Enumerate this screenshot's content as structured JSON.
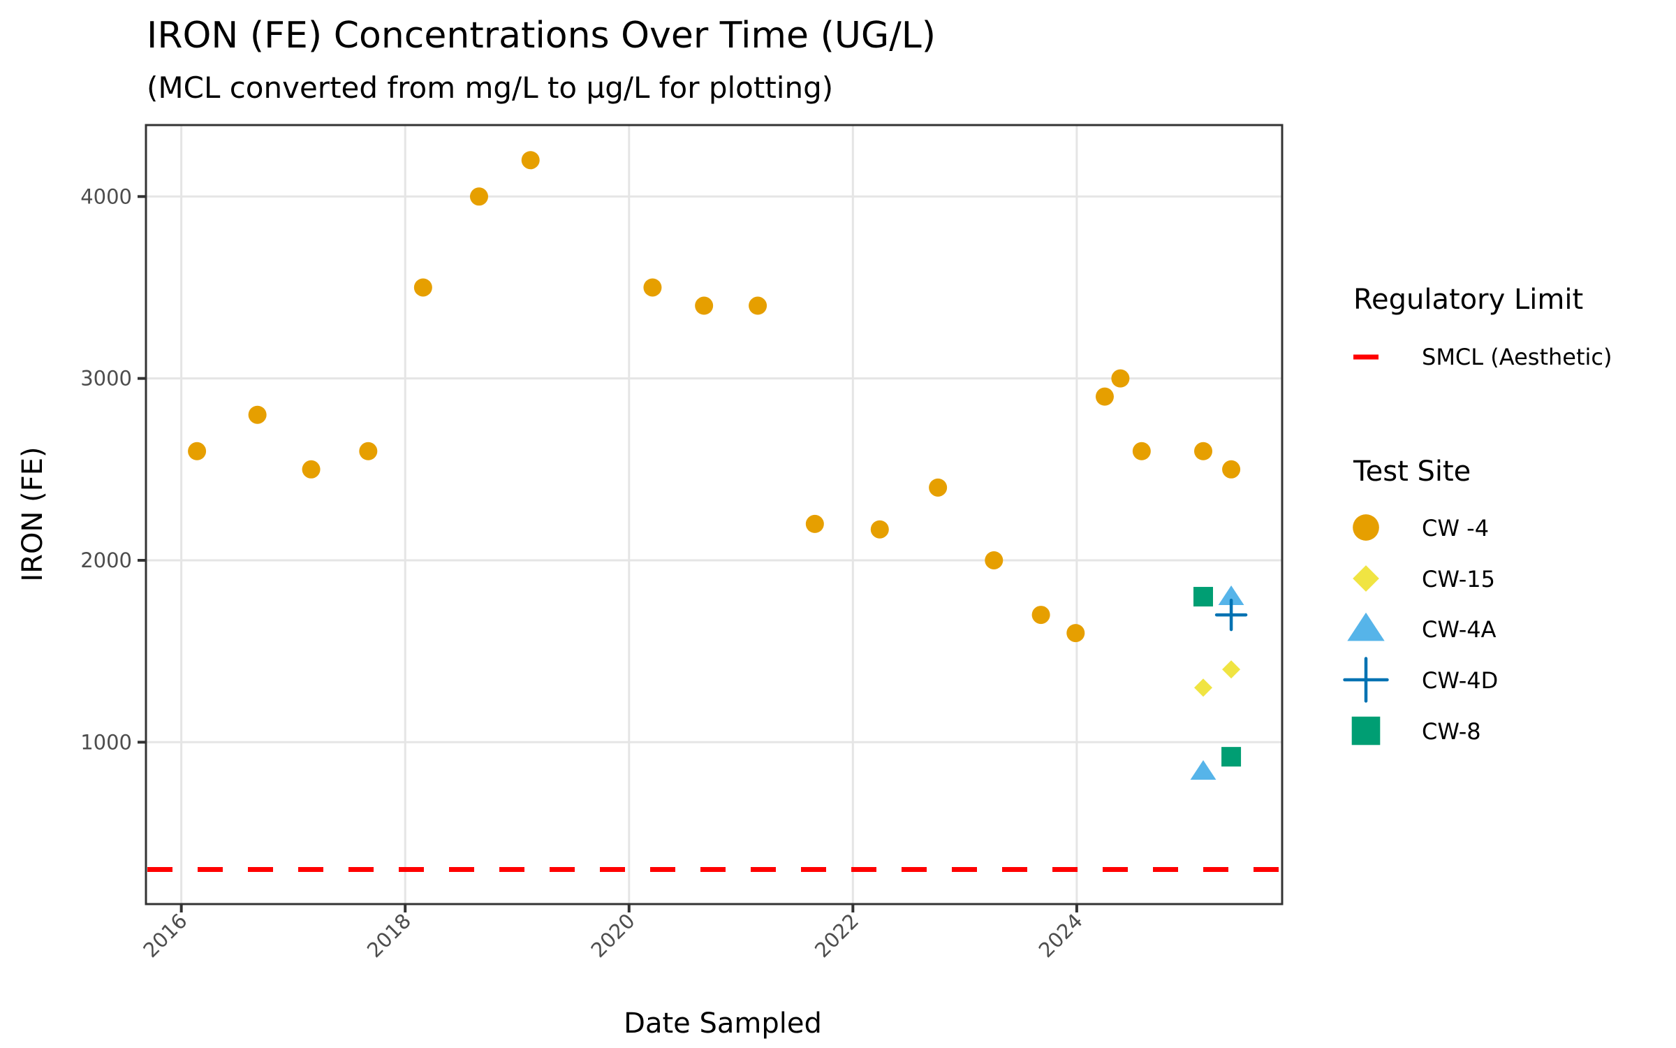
{
  "chart_data": {
    "type": "scatter",
    "title": "IRON (FE) Concentrations Over Time (UG/L)",
    "subtitle": "(MCL converted from mg/L to µg/L for plotting)",
    "xlabel": "Date Sampled",
    "ylabel": "IRON (FE)",
    "xlim": [
      2015.684,
      2025.835
    ],
    "ylim": [
      110,
      4393
    ],
    "x_ticks": [
      2016,
      2018,
      2020,
      2022,
      2024
    ],
    "x_tick_labels": [
      "2016",
      "2018",
      "2020",
      "2022",
      "2024"
    ],
    "y_ticks": [
      1000,
      2000,
      3000,
      4000
    ],
    "y_tick_labels": [
      "1000",
      "2000",
      "3000",
      "4000"
    ],
    "grid": true,
    "legend_position": "right",
    "reference_lines": [
      {
        "name": "SMCL (Aesthetic)",
        "value": 300,
        "color": "#ff0000",
        "style": "dashed"
      }
    ],
    "legends": {
      "regulatory": {
        "title": "Regulatory Limit",
        "items": [
          "SMCL (Aesthetic)"
        ]
      },
      "sites": {
        "title": "Test Site",
        "items": [
          "CW -4",
          "CW-15",
          "CW-4A",
          "CW-4D",
          "CW-8"
        ]
      }
    },
    "series": [
      {
        "name": "CW -4",
        "shape": "circle",
        "color": "#E69F00",
        "x": [
          2016.14,
          2016.68,
          2017.16,
          2017.67,
          2018.16,
          2018.66,
          2019.12,
          2020.21,
          2020.67,
          2021.15,
          2021.66,
          2022.24,
          2022.76,
          2023.26,
          2023.68,
          2023.99,
          2024.25,
          2024.39,
          2024.58,
          2025.13,
          2025.38
        ],
        "y": [
          2600,
          2800,
          2500,
          2600,
          3500,
          4000,
          4200,
          3500,
          3400,
          3400,
          2200,
          2170,
          2400,
          2000,
          1700,
          1600,
          2900,
          3000,
          2600,
          2600,
          2500
        ]
      },
      {
        "name": "CW-15",
        "shape": "diamond",
        "color": "#F0E442",
        "x": [
          2025.13,
          2025.38
        ],
        "y": [
          1300,
          1400
        ]
      },
      {
        "name": "CW-4A",
        "shape": "triangle",
        "color": "#56B4E9",
        "x": [
          2025.13,
          2025.38
        ],
        "y": [
          840,
          1800
        ]
      },
      {
        "name": "CW-4D",
        "shape": "plus",
        "color": "#0072B2",
        "x": [
          2025.38
        ],
        "y": [
          1700
        ]
      },
      {
        "name": "CW-8",
        "shape": "square",
        "color": "#009E73",
        "x": [
          2025.13,
          2025.38
        ],
        "y": [
          1800,
          920
        ]
      }
    ]
  }
}
